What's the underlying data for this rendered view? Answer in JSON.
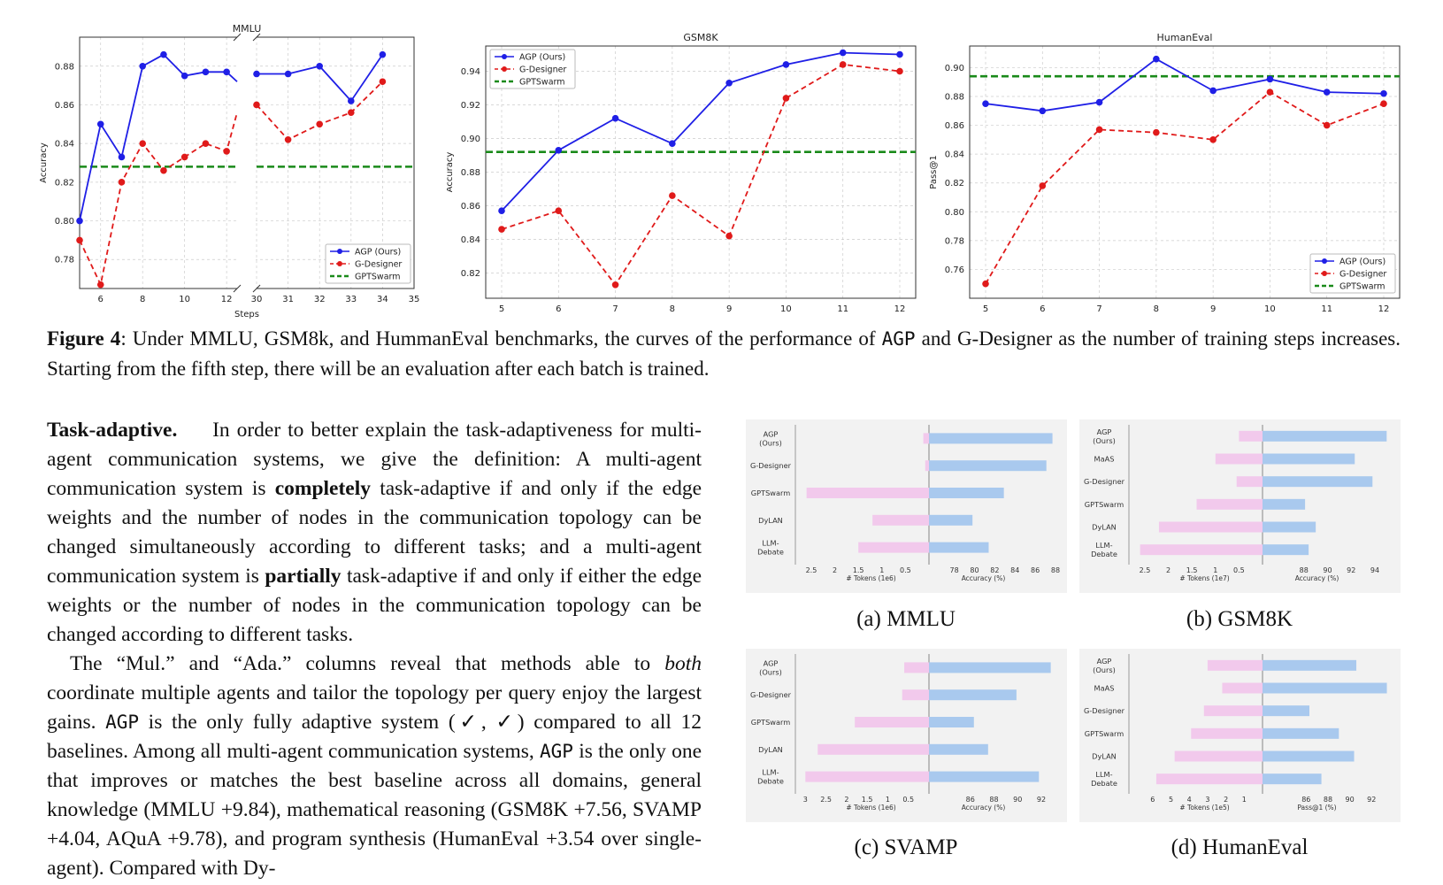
{
  "figure4": {
    "caption_label": "Figure 4",
    "caption_rest": ": Under MMLU, GSM8k, and HummanEval benchmarks, the curves of the performance of",
    "caption_agp": "AGP",
    "caption_end": "and G-Designer as the number of training steps increases. Starting from the fifth step, there will be an evaluation after each batch is trained."
  },
  "legend": {
    "agp": "AGP (Ours)",
    "gd": "G-Designer",
    "gs": "GPTSwarm"
  },
  "colors": {
    "agp": "#1f1fe6",
    "gd": "#e01a1a",
    "gs": "#1a8a1a",
    "pink": "#f2c9ec",
    "blue": "#a9c9ee"
  },
  "chart_data": [
    {
      "type": "line",
      "title": "MMLU",
      "xlabel": "Steps",
      "ylabel": "Accuracy",
      "broken_x": true,
      "ylim": [
        0.765,
        0.895
      ],
      "yticks": [
        "0.78",
        "0.80",
        "0.82",
        "0.84",
        "0.86",
        "0.88"
      ],
      "xticks_left": [
        "6",
        "8",
        "10",
        "12"
      ],
      "xticks_right": [
        "30",
        "31",
        "32",
        "33",
        "34",
        "35"
      ],
      "grid": true,
      "legend_placement": "bottom-right",
      "series": [
        {
          "name": "AGP (Ours)",
          "x": [
            5,
            6,
            7,
            8,
            9,
            10,
            11,
            12,
            12.5,
            30,
            31,
            32,
            33,
            34
          ],
          "y": [
            0.8,
            0.85,
            0.833,
            0.88,
            0.886,
            0.875,
            0.877,
            0.877,
            0.872,
            0.876,
            0.876,
            0.88,
            0.862,
            0.886
          ]
        },
        {
          "name": "G-Designer",
          "x": [
            5,
            6,
            7,
            8,
            9,
            10,
            11,
            12,
            12.5,
            30,
            31,
            32,
            33,
            34
          ],
          "y": [
            0.79,
            0.767,
            0.82,
            0.84,
            0.826,
            0.833,
            0.84,
            0.836,
            0.856,
            0.86,
            0.842,
            0.85,
            0.856,
            0.872
          ]
        },
        {
          "name": "GPTSwarm",
          "y": 0.828
        }
      ]
    },
    {
      "type": "line",
      "title": "GSM8K",
      "xlabel": "Steps",
      "ylabel": "Accuracy",
      "ylim": [
        0.805,
        0.955
      ],
      "yticks": [
        "0.82",
        "0.84",
        "0.86",
        "0.88",
        "0.90",
        "0.92",
        "0.94"
      ],
      "xticks": [
        "5",
        "6",
        "7",
        "8",
        "9",
        "10",
        "11",
        "12"
      ],
      "grid": true,
      "legend_placement": "top-left",
      "series": [
        {
          "name": "AGP (Ours)",
          "x": [
            5,
            6,
            7,
            8,
            9,
            10,
            11,
            12
          ],
          "y": [
            0.857,
            0.893,
            0.912,
            0.897,
            0.933,
            0.944,
            0.951,
            0.95
          ]
        },
        {
          "name": "G-Designer",
          "x": [
            5,
            6,
            7,
            8,
            9,
            10,
            11,
            12
          ],
          "y": [
            0.846,
            0.857,
            0.813,
            0.866,
            0.842,
            0.924,
            0.944,
            0.94
          ]
        },
        {
          "name": "GPTSwarm",
          "y": 0.892
        }
      ]
    },
    {
      "type": "line",
      "title": "HumanEval",
      "xlabel": "Steps",
      "ylabel": "Pass@1",
      "ylim": [
        0.74,
        0.915
      ],
      "yticks": [
        "0.76",
        "0.78",
        "0.80",
        "0.82",
        "0.84",
        "0.86",
        "0.88",
        "0.90"
      ],
      "xticks": [
        "5",
        "6",
        "7",
        "8",
        "9",
        "10",
        "11",
        "12"
      ],
      "grid": true,
      "legend_placement": "bottom-right",
      "series": [
        {
          "name": "AGP (Ours)",
          "x": [
            5,
            6,
            7,
            8,
            9,
            10,
            11,
            12
          ],
          "y": [
            0.875,
            0.87,
            0.876,
            0.906,
            0.884,
            0.892,
            0.883,
            0.882
          ]
        },
        {
          "name": "G-Designer",
          "x": [
            5,
            6,
            7,
            8,
            9,
            10,
            11,
            12
          ],
          "y": [
            0.75,
            0.818,
            0.857,
            0.855,
            0.85,
            0.883,
            0.86,
            0.875
          ]
        },
        {
          "name": "GPTSwarm",
          "y": 0.894
        }
      ]
    },
    {
      "type": "bar",
      "label": "(a) MMLU",
      "categories": [
        "AGP (Ours)",
        "G-Designer",
        "GPTSwarm",
        "DyLAN",
        "LLM- Debate"
      ],
      "left_axis": {
        "label": "# Tokens (1e6)",
        "ticks": [
          "2.5",
          "2",
          "1.5",
          "1",
          "0.5"
        ],
        "range": [
          2.8,
          0
        ],
        "values": [
          0.12,
          0.08,
          2.6,
          1.2,
          1.5
        ]
      },
      "right_axis": {
        "label": "Accuracy (%)",
        "ticks": [
          "78",
          "80",
          "82",
          "84",
          "86",
          "88"
        ],
        "range": [
          75.5,
          88
        ],
        "values": [
          87.7,
          87.1,
          82.9,
          79.8,
          81.4
        ]
      }
    },
    {
      "type": "bar",
      "label": "(b) GSM8K",
      "categories": [
        "AGP (Ours)",
        "MaAS",
        "G-Designer",
        "GPTSwarm",
        "DyLAN",
        "LLM- Debate"
      ],
      "left_axis": {
        "label": "# Tokens (1e7)",
        "ticks": [
          "2.5",
          "2",
          "1.5",
          "1",
          "0.5"
        ],
        "range": [
          2.8,
          0
        ],
        "values": [
          0.5,
          1.0,
          0.55,
          1.4,
          2.2,
          2.6
        ]
      },
      "right_axis": {
        "label": "Accuracy (%)",
        "ticks": [
          "88",
          "90",
          "92",
          "94"
        ],
        "range": [
          84.5,
          95.2
        ],
        "values": [
          95.0,
          92.3,
          93.8,
          88.1,
          89.0,
          88.4
        ]
      }
    },
    {
      "type": "bar",
      "label": "(c) SVAMP",
      "categories": [
        "AGP (Ours)",
        "G-Designer",
        "GPTSwarm",
        "DyLAN",
        "LLM- Debate"
      ],
      "left_axis": {
        "label": "# Tokens (1e6)",
        "ticks": [
          "3",
          "2.5",
          "2",
          "1.5",
          "1",
          "0.5"
        ],
        "range": [
          3.2,
          0
        ],
        "values": [
          0.6,
          0.65,
          1.8,
          2.7,
          3.0
        ]
      },
      "right_axis": {
        "label": "Accuracy (%)",
        "ticks": [
          "86",
          "88",
          "90",
          "92"
        ],
        "range": [
          82.5,
          93.2
        ],
        "values": [
          92.8,
          89.9,
          86.3,
          87.5,
          91.8
        ]
      }
    },
    {
      "type": "bar",
      "label": "(d) HumanEval",
      "categories": [
        "AGP (Ours)",
        "MaAS",
        "G-Designer",
        "GPTSwarm",
        "DyLAN",
        "LLM- Debate"
      ],
      "left_axis": {
        "label": "# Tokens (1e5)",
        "ticks": [
          "6",
          "5",
          "4",
          "3",
          "2",
          "1"
        ],
        "range": [
          7.2,
          0
        ],
        "values": [
          3.0,
          2.2,
          3.2,
          3.9,
          4.8,
          5.8
        ]
      },
      "right_axis": {
        "label": "Pass@1 (%)",
        "ticks": [
          "86",
          "88",
          "90",
          "92"
        ],
        "range": [
          82,
          93.6
        ],
        "values": [
          90.6,
          93.4,
          86.3,
          89.0,
          90.4,
          87.4
        ]
      }
    }
  ],
  "body": {
    "p1_heading": "Task-adaptive.",
    "p1_a": "In order to better explain the task-adaptiveness for multi-agent communication systems, we give the definition: A multi-agent communication system is",
    "p1_b": "completely",
    "p1_c": "task-adaptive if and only if the edge weights and the number of nodes in the communication topology can be changed simultaneously according to different tasks; and a multi-agent communication system is",
    "p1_d": "partially",
    "p1_e": "task-adaptive if and only if either the edge weights or the number of nodes in the communication topology can be changed according to different tasks.",
    "p2_a": "The “Mul.” and “Ada.” columns reveal that methods able to",
    "p2_b": "both",
    "p2_c": "coordinate multiple agents and tailor the topology per query enjoy the largest gains.",
    "p2_agp1": "AGP",
    "p2_d": "is the only fully adaptive system (✓, ✓) compared to all 12 baselines. Among all multi-agent communication systems,",
    "p2_agp2": "AGP",
    "p2_e": "is the only one that improves or matches the best baseline across all domains, general knowledge (MMLU +9.84), mathematical reasoning (GSM8K +7.56, SVAMP +4.04, AQuA +9.78), and program synthesis (HumanEval +3.54 over single-agent). Compared with Dy-"
  }
}
